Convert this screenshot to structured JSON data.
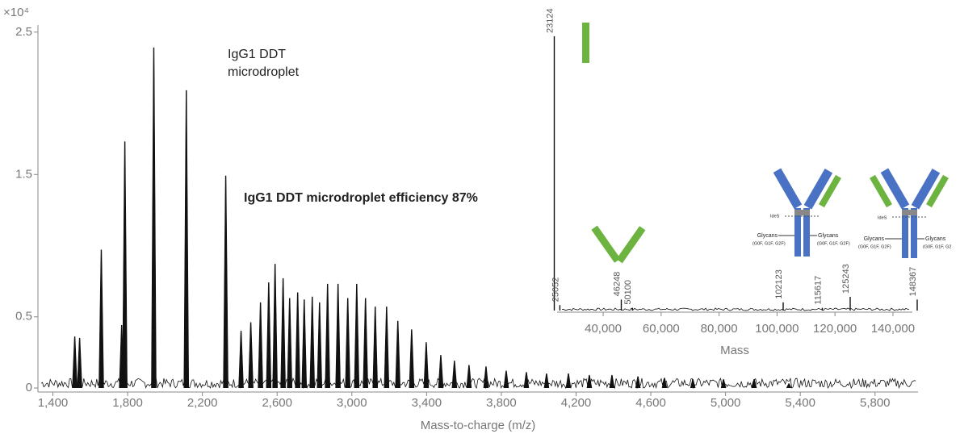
{
  "chart_data": [
    {
      "type": "spectrum",
      "y_scale_label": "×10⁴",
      "x_label": "Mass-to-charge (m/z)",
      "annotations": [
        "IgG1 DDT",
        "microdroplet",
        "IgG1 DDT microdroplet efficiency 87%"
      ],
      "color": "#111111",
      "x": [
        1517,
        1543,
        1659,
        1768,
        1785,
        1940,
        2114,
        2325,
        2407,
        2459,
        2511,
        2555,
        2589,
        2632,
        2667,
        2710,
        2745,
        2788,
        2827,
        2870,
        2926,
        2978,
        3026,
        3073,
        3125,
        3186,
        3246,
        3320,
        3398,
        3476,
        3549,
        3627,
        3718,
        3826,
        3934,
        4042,
        4159,
        4271,
        4392,
        4531,
        4673,
        4825,
        4989,
        5153,
        5339
      ],
      "values": [
        0.36,
        0.35,
        0.97,
        0.44,
        1.73,
        2.39,
        2.09,
        1.49,
        0.4,
        0.46,
        0.6,
        0.74,
        0.87,
        0.77,
        0.63,
        0.67,
        0.62,
        0.64,
        0.6,
        0.73,
        0.73,
        0.63,
        0.73,
        0.63,
        0.57,
        0.57,
        0.47,
        0.41,
        0.32,
        0.23,
        0.19,
        0.16,
        0.15,
        0.12,
        0.11,
        0.1,
        0.1,
        0.09,
        0.09,
        0.08,
        0.07,
        0.06,
        0.06,
        0.06,
        0.03
      ],
      "xlim": [
        1320,
        6030
      ],
      "ylim": [
        0,
        2.55
      ],
      "xticks": [
        {
          "value": 1400,
          "label": "1,400"
        },
        {
          "value": 1800,
          "label": "1,800"
        },
        {
          "value": 2200,
          "label": "2,200"
        },
        {
          "value": 2600,
          "label": "2,600"
        },
        {
          "value": 3000,
          "label": "3,000"
        },
        {
          "value": 3400,
          "label": "3,400"
        },
        {
          "value": 3800,
          "label": "3,800"
        },
        {
          "value": 4200,
          "label": "4,200"
        },
        {
          "value": 4600,
          "label": "4,600"
        },
        {
          "value": 5000,
          "label": "5,000"
        },
        {
          "value": 5400,
          "label": "5,400"
        },
        {
          "value": 5800,
          "label": "5,800"
        }
      ],
      "yticks": [
        0,
        0.5,
        1.5,
        2.5
      ]
    },
    {
      "type": "stick",
      "x_label": "Mass",
      "color": "#111111",
      "x": [
        23124,
        25052,
        46248,
        50100,
        102123,
        115617,
        125243,
        148367
      ],
      "values": [
        100,
        2,
        4,
        1,
        3,
        1,
        5,
        4
      ],
      "xlim": [
        24100,
        146700
      ],
      "ylim": [
        0,
        100
      ],
      "xticks": [
        {
          "value": 40000,
          "label": "40,000"
        },
        {
          "value": 60000,
          "label": "60,000"
        },
        {
          "value": 80000,
          "label": "80,000"
        },
        {
          "value": 100000,
          "label": "100,000"
        },
        {
          "value": 120000,
          "label": "120,000"
        },
        {
          "value": 140000,
          "label": "140,000"
        }
      ],
      "diagram_labels": {
        "ides": "IdeS",
        "glycans": "Glycans",
        "glycan_forms": "(G0F, G1F, G2F)",
        "glycan_forms_cut": "(G0F, G1F, G2"
      }
    }
  ]
}
